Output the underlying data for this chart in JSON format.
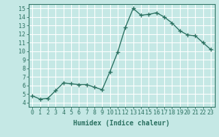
{
  "x": [
    0,
    1,
    2,
    3,
    4,
    5,
    6,
    7,
    8,
    9,
    10,
    11,
    12,
    13,
    14,
    15,
    16,
    17,
    18,
    19,
    20,
    21,
    22,
    23
  ],
  "y": [
    4.8,
    4.4,
    4.5,
    5.4,
    6.3,
    6.2,
    6.1,
    6.1,
    5.8,
    5.5,
    7.6,
    9.9,
    12.8,
    15.0,
    14.2,
    14.3,
    14.5,
    14.0,
    13.3,
    12.4,
    11.9,
    11.8,
    11.0,
    10.2
  ],
  "line_color": "#2a7060",
  "marker": "+",
  "markersize": 4,
  "linewidth": 1.0,
  "markeredgewidth": 1.0,
  "xlabel": "Humidex (Indice chaleur)",
  "xlabel_fontsize": 7,
  "xlabel_fontweight": "bold",
  "xlim": [
    -0.5,
    23.5
  ],
  "ylim": [
    3.5,
    15.5
  ],
  "yticks": [
    4,
    5,
    6,
    7,
    8,
    9,
    10,
    11,
    12,
    13,
    14,
    15
  ],
  "xticks": [
    0,
    1,
    2,
    3,
    4,
    5,
    6,
    7,
    8,
    9,
    10,
    11,
    12,
    13,
    14,
    15,
    16,
    17,
    18,
    19,
    20,
    21,
    22,
    23
  ],
  "background_color": "#c5e8e5",
  "grid_color": "#ffffff",
  "tick_color": "#2a7060",
  "tick_fontsize": 6,
  "spine_color": "#2a7060"
}
